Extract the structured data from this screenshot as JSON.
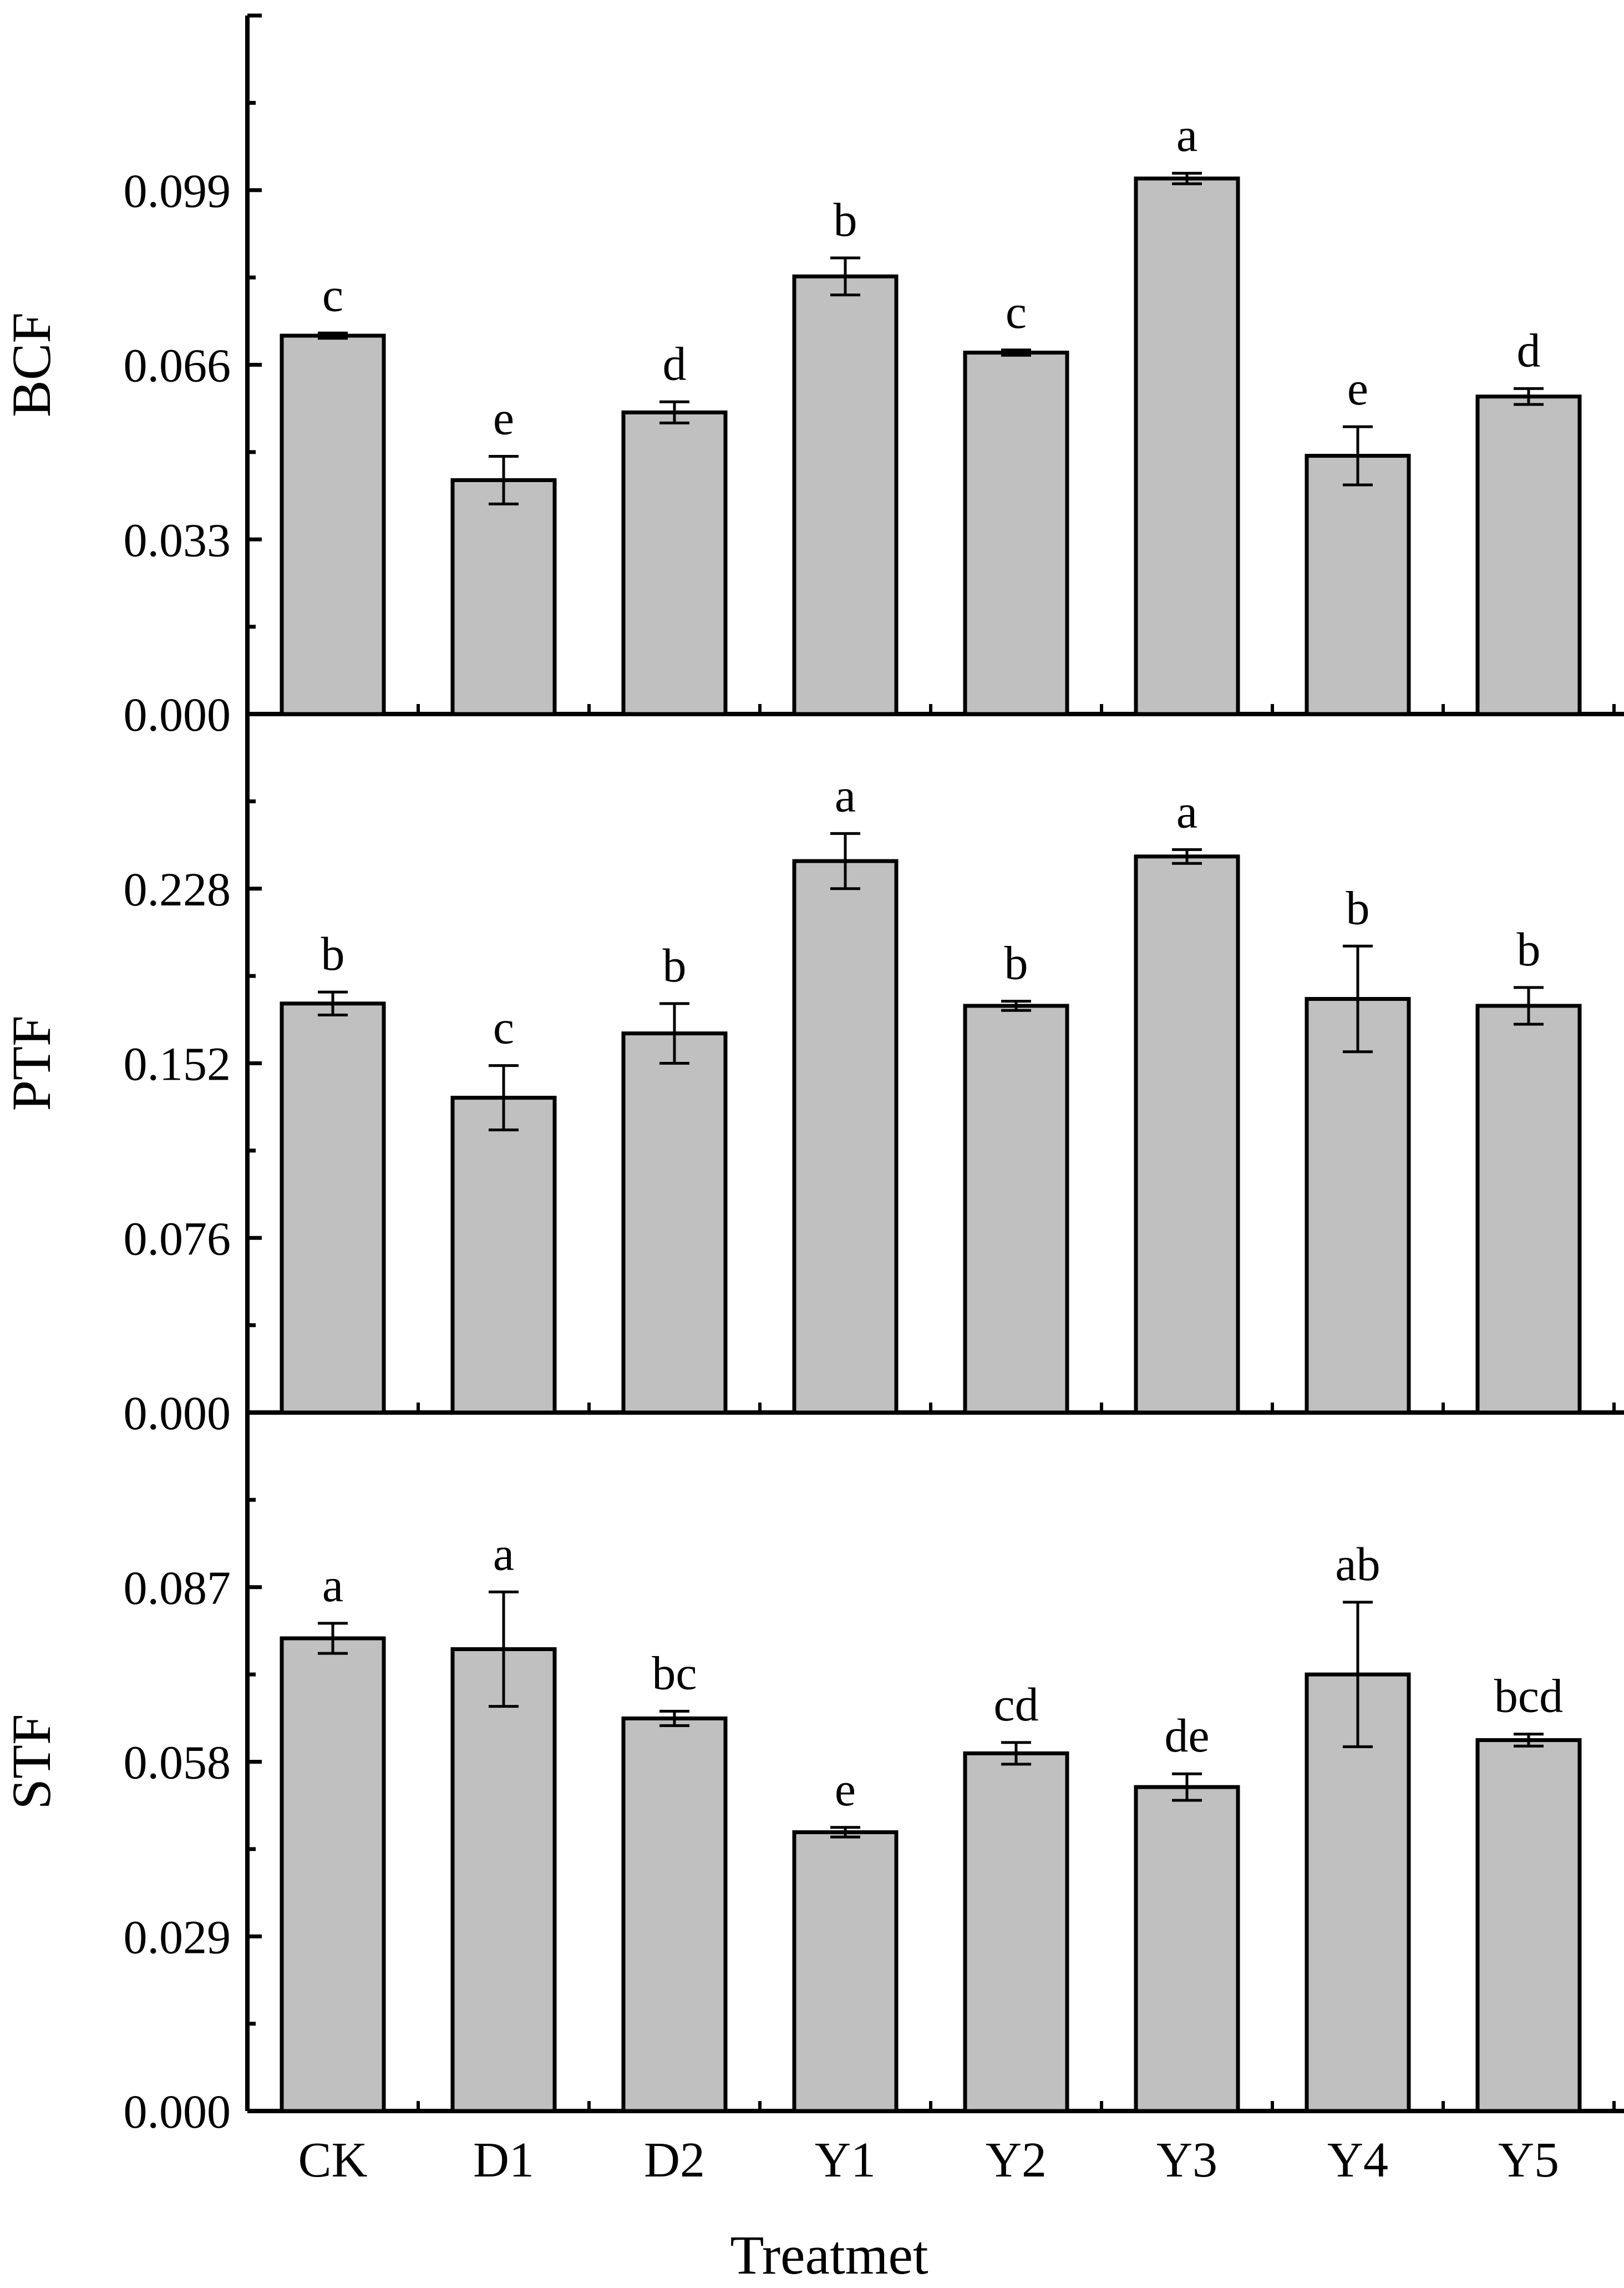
{
  "chart_data": {
    "type": "bar",
    "categories": [
      "CK",
      "D1",
      "D2",
      "Y1",
      "Y2",
      "Y3",
      "Y4",
      "Y5"
    ],
    "xlabel": "Treatmet",
    "bar_color": "#c0c0c0",
    "panels": [
      {
        "ylabel": "BCF",
        "ylim": [
          0,
          0.132
        ],
        "ticks": [
          "0.000",
          "0.033",
          "0.066",
          "0.099"
        ],
        "values": [
          0.0715,
          0.0442,
          0.057,
          0.0827,
          0.0683,
          0.1012,
          0.0488,
          0.06
        ],
        "errors": [
          0.0005,
          0.0045,
          0.002,
          0.0035,
          0.0005,
          0.001,
          0.0055,
          0.0015
        ],
        "letters": [
          "c",
          "e",
          "d",
          "b",
          "c",
          "a",
          "e",
          "d"
        ]
      },
      {
        "ylabel": "PTF",
        "ylim": [
          0,
          0.304
        ],
        "ticks": [
          "0.000",
          "0.076",
          "0.152",
          "0.228"
        ],
        "values": [
          0.178,
          0.137,
          0.165,
          0.24,
          0.177,
          0.242,
          0.18,
          0.177
        ],
        "errors": [
          0.005,
          0.014,
          0.013,
          0.012,
          0.002,
          0.003,
          0.023,
          0.008
        ],
        "letters": [
          "b",
          "c",
          "b",
          "a",
          "b",
          "a",
          "b",
          "b"
        ]
      },
      {
        "ylabel": "STF",
        "ylim": [
          0,
          0.116
        ],
        "ticks": [
          "0.000",
          "0.029",
          "0.058",
          "0.087"
        ],
        "values": [
          0.0785,
          0.0767,
          0.0652,
          0.0463,
          0.0594,
          0.0538,
          0.0725,
          0.0616
        ],
        "errors": [
          0.0025,
          0.0095,
          0.0012,
          0.0008,
          0.0018,
          0.0022,
          0.012,
          0.001
        ],
        "letters": [
          "a",
          "a",
          "bc",
          "e",
          "cd",
          "de",
          "ab",
          "bcd"
        ]
      }
    ]
  }
}
